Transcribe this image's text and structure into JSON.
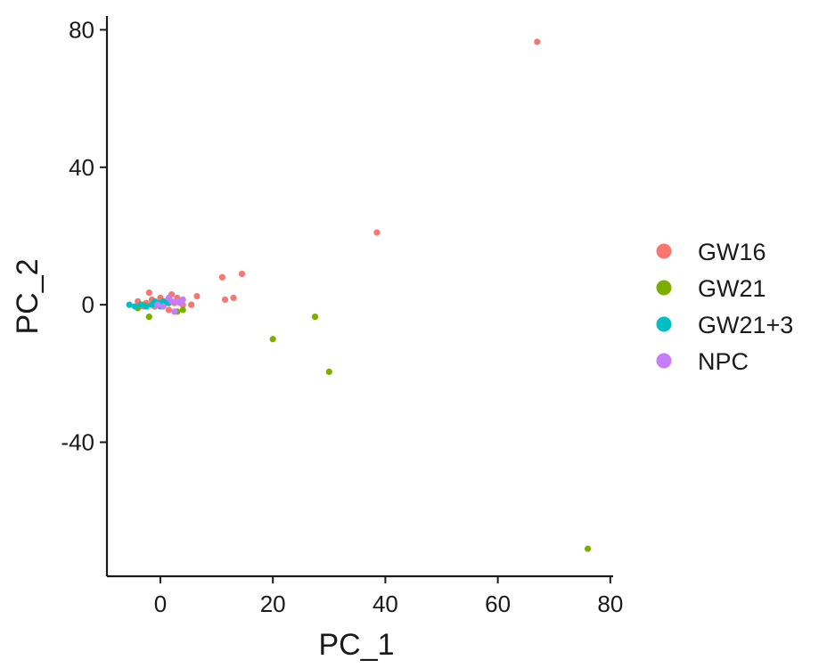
{
  "chart_data": {
    "type": "scatter",
    "title": "",
    "xlabel": "PC_1",
    "ylabel": "PC_2",
    "xlim": [
      -9.5,
      80.5
    ],
    "ylim": [
      -79,
      84
    ],
    "x_ticks": [
      0,
      20,
      40,
      60,
      80
    ],
    "y_ticks": [
      -40,
      0,
      40,
      80
    ],
    "grid": false,
    "legend_position": "right",
    "series": [
      {
        "name": "GW16",
        "color": "#F8766D",
        "points": [
          [
            67,
            76.5
          ],
          [
            38.5,
            21
          ],
          [
            14.5,
            9
          ],
          [
            11,
            8
          ],
          [
            13,
            2
          ],
          [
            11.5,
            1.5
          ],
          [
            6.5,
            2.5
          ],
          [
            5.5,
            0
          ],
          [
            -2,
            3.5
          ],
          [
            -4,
            1
          ],
          [
            -2.5,
            0.5
          ],
          [
            -1,
            -0.5
          ],
          [
            0,
            2
          ],
          [
            1,
            1
          ],
          [
            2,
            3
          ],
          [
            3,
            2
          ],
          [
            1.5,
            -1.5
          ],
          [
            -3,
            -0.5
          ],
          [
            0.5,
            0
          ],
          [
            -1.5,
            1.5
          ],
          [
            2.5,
            0.5
          ],
          [
            4,
            0
          ]
        ]
      },
      {
        "name": "GW21",
        "color": "#7CAE00",
        "points": [
          [
            76,
            -71
          ],
          [
            30,
            -19.5
          ],
          [
            27.5,
            -3.5
          ],
          [
            20,
            -10
          ],
          [
            -2,
            -3.5
          ],
          [
            4,
            -1.5
          ],
          [
            -4,
            -1
          ],
          [
            3,
            -2
          ],
          [
            1,
            0.5
          ],
          [
            -3,
            0
          ]
        ]
      },
      {
        "name": "GW21+3",
        "color": "#00BFC4",
        "points": [
          [
            -5.5,
            0
          ],
          [
            -4.5,
            -0.5
          ],
          [
            -3.5,
            0
          ],
          [
            -2.5,
            -0.5
          ],
          [
            -1.5,
            0
          ],
          [
            -0.5,
            0.5
          ],
          [
            0.5,
            1
          ],
          [
            1.5,
            0.5
          ],
          [
            0,
            -0.5
          ],
          [
            -1,
            1
          ]
        ]
      },
      {
        "name": "NPC",
        "color": "#C77CFF",
        "points": [
          [
            2.5,
            -2
          ],
          [
            3,
            1
          ],
          [
            3.5,
            0.5
          ],
          [
            4,
            1.5
          ],
          [
            2,
            1
          ],
          [
            0.5,
            -0.5
          ],
          [
            -0.5,
            0
          ],
          [
            1.5,
            2
          ]
        ]
      }
    ]
  }
}
